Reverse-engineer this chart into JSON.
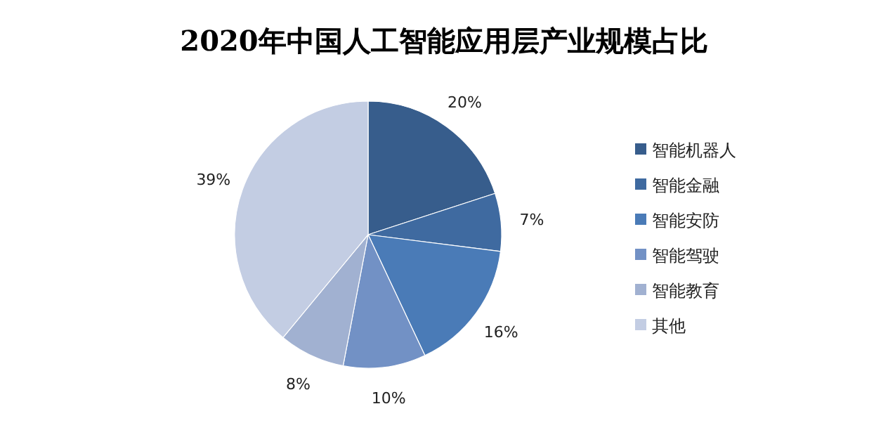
{
  "chart_data": {
    "type": "pie",
    "title": "2020年中国人工智能应用层产业规模占比",
    "categories": [
      "智能机器人",
      "智能金融",
      "智能安防",
      "智能驾驶",
      "智能教育",
      "其他"
    ],
    "values": [
      20,
      7,
      16,
      10,
      8,
      39
    ],
    "value_labels": [
      "20%",
      "7%",
      "16%",
      "10%",
      "8%",
      "39%"
    ],
    "colors": [
      "#375d8c",
      "#3f6aa0",
      "#4a7bb7",
      "#7291c5",
      "#a1b1d1",
      "#c3cde3"
    ],
    "legend": "right"
  }
}
